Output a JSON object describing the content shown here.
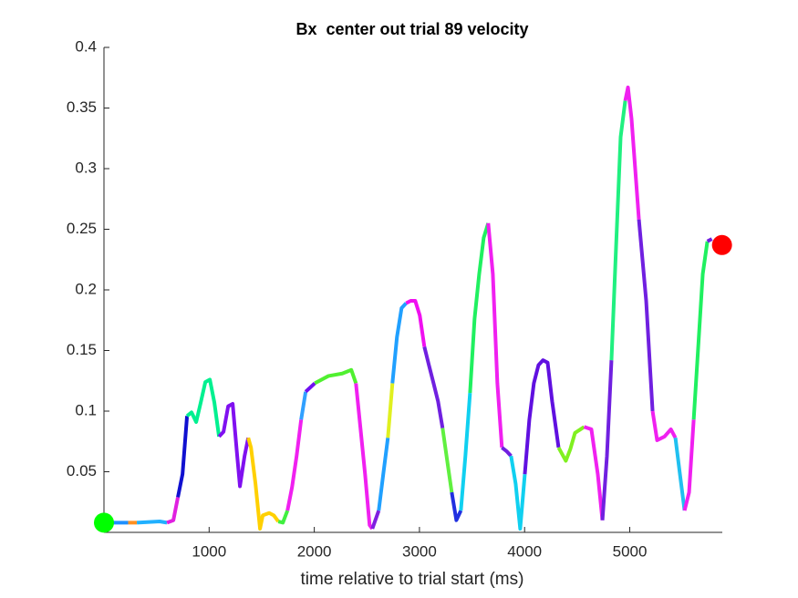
{
  "chart_data": {
    "type": "line",
    "title": "Bx  center out trial 89 velocity",
    "xlabel": "time relative to trial start (ms)",
    "xlim": [
      0,
      5880
    ],
    "ylim": [
      0,
      0.4
    ],
    "xticks": [
      1000,
      2000,
      3000,
      4000,
      5000
    ],
    "yticks": [
      0.05,
      0.1,
      0.15,
      0.2,
      0.25,
      0.3,
      0.35,
      0.4
    ],
    "segments": [
      {
        "color": "#1e90ff",
        "x": [
          0,
          230
        ],
        "values": [
          0.008,
          0.008
        ]
      },
      {
        "color": "#ff9020",
        "x": [
          230,
          313
        ],
        "values": [
          0.008,
          0.008
        ]
      },
      {
        "color": "#20b0ff",
        "x": [
          313,
          530,
          599
        ],
        "values": [
          0.008,
          0.009,
          0.008
        ]
      },
      {
        "color": "#e020e0",
        "x": [
          599,
          660,
          703
        ],
        "values": [
          0.008,
          0.01,
          0.029
        ]
      },
      {
        "color": "#1010d0",
        "x": [
          703,
          747,
          790
        ],
        "values": [
          0.029,
          0.048,
          0.096
        ]
      },
      {
        "color": "#00f090",
        "x": [
          790,
          833,
          877,
          920,
          964,
          1007,
          1050,
          1094
        ],
        "values": [
          0.096,
          0.099,
          0.091,
          0.107,
          0.124,
          0.126,
          0.107,
          0.079
        ]
      },
      {
        "color": "#8010f0",
        "x": [
          1094,
          1137,
          1181,
          1224,
          1267,
          1293,
          1337,
          1372
        ],
        "values": [
          0.079,
          0.083,
          0.104,
          0.106,
          0.063,
          0.038,
          0.063,
          0.078
        ]
      },
      {
        "color": "#ffd000",
        "x": [
          1372,
          1398,
          1441,
          1484,
          1510,
          1571,
          1615,
          1658
        ],
        "values": [
          0.078,
          0.07,
          0.04,
          0.003,
          0.014,
          0.016,
          0.014,
          0.009
        ]
      },
      {
        "color": "#40f040",
        "x": [
          1658,
          1701,
          1745
        ],
        "values": [
          0.009,
          0.008,
          0.018
        ]
      },
      {
        "color": "#f020f0",
        "x": [
          1745,
          1788,
          1832,
          1875
        ],
        "values": [
          0.018,
          0.037,
          0.063,
          0.093
        ]
      },
      {
        "color": "#30a0ff",
        "x": [
          1875,
          1918
        ],
        "values": [
          0.093,
          0.116
        ]
      },
      {
        "color": "#7010f0",
        "x": [
          1918,
          2005
        ],
        "values": [
          0.116,
          0.123
        ]
      },
      {
        "color": "#50f030",
        "x": [
          2005,
          2135,
          2266,
          2352,
          2396
        ],
        "values": [
          0.123,
          0.129,
          0.131,
          0.134,
          0.123
        ]
      },
      {
        "color": "#f020f0",
        "x": [
          2396,
          2439,
          2483,
          2526,
          2552
        ],
        "values": [
          0.123,
          0.086,
          0.048,
          0.006,
          0.003
        ]
      },
      {
        "color": "#8020e0",
        "x": [
          2552,
          2613
        ],
        "values": [
          0.003,
          0.018
        ]
      },
      {
        "color": "#20a0ff",
        "x": [
          2613,
          2656,
          2700
        ],
        "values": [
          0.018,
          0.048,
          0.078
        ]
      },
      {
        "color": "#e0f020",
        "x": [
          2700,
          2743
        ],
        "values": [
          0.078,
          0.123
        ]
      },
      {
        "color": "#20a0ff",
        "x": [
          2743,
          2786,
          2830,
          2873
        ],
        "values": [
          0.123,
          0.161,
          0.185,
          0.189
        ]
      },
      {
        "color": "#f010f0",
        "x": [
          2873,
          2917,
          2960,
          3003,
          3047
        ],
        "values": [
          0.189,
          0.191,
          0.191,
          0.179,
          0.153
        ]
      },
      {
        "color": "#7020e0",
        "x": [
          3047,
          3090,
          3134,
          3177,
          3220
        ],
        "values": [
          0.153,
          0.138,
          0.123,
          0.108,
          0.086
        ]
      },
      {
        "color": "#60f040",
        "x": [
          3220,
          3264,
          3307
        ],
        "values": [
          0.086,
          0.059,
          0.033
        ]
      },
      {
        "color": "#2030e0",
        "x": [
          3307,
          3351,
          3394
        ],
        "values": [
          0.033,
          0.01,
          0.018
        ]
      },
      {
        "color": "#10d0f0",
        "x": [
          3394,
          3437,
          3481
        ],
        "values": [
          0.018,
          0.063,
          0.115
        ]
      },
      {
        "color": "#20f060",
        "x": [
          3481,
          3524,
          3568,
          3611,
          3654
        ],
        "values": [
          0.115,
          0.176,
          0.213,
          0.243,
          0.255
        ]
      },
      {
        "color": "#f020f0",
        "x": [
          3654,
          3698,
          3741,
          3784
        ],
        "values": [
          0.255,
          0.213,
          0.123,
          0.07
        ]
      },
      {
        "color": "#7020e0",
        "x": [
          3784,
          3828,
          3871
        ],
        "values": [
          0.07,
          0.067,
          0.063
        ]
      },
      {
        "color": "#10d0f0",
        "x": [
          3871,
          3915,
          3958,
          4002
        ],
        "values": [
          0.063,
          0.04,
          0.003,
          0.048
        ]
      },
      {
        "color": "#6010e0",
        "x": [
          4002,
          4045,
          4088,
          4132,
          4175,
          4219,
          4262,
          4323
        ],
        "values": [
          0.048,
          0.093,
          0.123,
          0.138,
          0.142,
          0.14,
          0.108,
          0.07
        ]
      },
      {
        "color": "#80f020",
        "x": [
          4323,
          4392,
          4436,
          4479,
          4566
        ],
        "values": [
          0.07,
          0.059,
          0.069,
          0.082,
          0.087
        ]
      },
      {
        "color": "#f020f0",
        "x": [
          4566,
          4635,
          4696,
          4740
        ],
        "values": [
          0.087,
          0.085,
          0.048,
          0.01
        ]
      },
      {
        "color": "#7020e0",
        "x": [
          4740,
          4783,
          4826
        ],
        "values": [
          0.01,
          0.063,
          0.142
        ]
      },
      {
        "color": "#20f080",
        "x": [
          4826,
          4870,
          4913,
          4957
        ],
        "values": [
          0.142,
          0.236,
          0.326,
          0.356
        ]
      },
      {
        "color": "#f020f0",
        "x": [
          4957,
          4983,
          5017,
          5087
        ],
        "values": [
          0.356,
          0.367,
          0.341,
          0.258
        ]
      },
      {
        "color": "#7020e0",
        "x": [
          5087,
          5156,
          5217
        ],
        "values": [
          0.258,
          0.191,
          0.1
        ]
      },
      {
        "color": "#f020f0",
        "x": [
          5217,
          5260,
          5330,
          5391,
          5434
        ],
        "values": [
          0.1,
          0.076,
          0.079,
          0.085,
          0.078
        ]
      },
      {
        "color": "#20c0f0",
        "x": [
          5434,
          5477,
          5521
        ],
        "values": [
          0.078,
          0.048,
          0.018
        ]
      },
      {
        "color": "#f020f0",
        "x": [
          5521,
          5564,
          5608
        ],
        "values": [
          0.018,
          0.033,
          0.093
        ]
      },
      {
        "color": "#20f060",
        "x": [
          5608,
          5651,
          5694,
          5738
        ],
        "values": [
          0.093,
          0.153,
          0.213,
          0.24
        ]
      },
      {
        "color": "#7020e0",
        "x": [
          5738,
          5781
        ],
        "values": [
          0.24,
          0.242
        ]
      }
    ],
    "markers": [
      {
        "x": 0,
        "y": 0.008,
        "color": "#00ff00"
      },
      {
        "x": 5877,
        "y": 0.237,
        "color": "#ff0000"
      }
    ]
  }
}
